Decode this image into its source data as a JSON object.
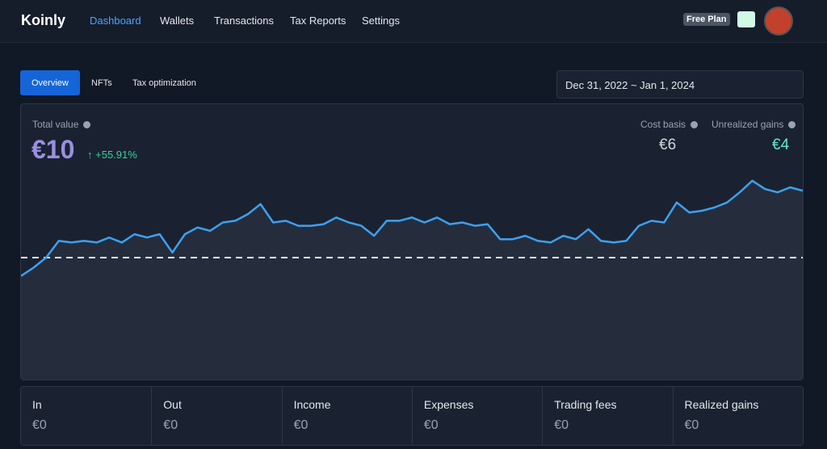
{
  "nav": {
    "brand": "Koinly",
    "links": [
      "Dashboard",
      "Wallets",
      "Transactions",
      "Tax Reports",
      "Settings"
    ],
    "plan": "Free Plan"
  },
  "tabs": [
    "Overview",
    "NFTs",
    "Tax optimization"
  ],
  "date_range": "Dec 31, 2022 ~ Jan 1, 2024",
  "summary": {
    "total_label": "Total value",
    "total": "€10",
    "change": "+55.91%",
    "cost_basis_label": "Cost basis",
    "cost_basis": "€6",
    "unrealized_label": "Unrealized gains",
    "unrealized": "€4"
  },
  "cards": [
    {
      "label": "In",
      "value": "€0"
    },
    {
      "label": "Out",
      "value": "€0"
    },
    {
      "label": "Income",
      "value": "€0"
    },
    {
      "label": "Expenses",
      "value": "€0"
    },
    {
      "label": "Trading fees",
      "value": "€0"
    },
    {
      "label": "Realized gains",
      "value": "€0"
    }
  ],
  "chart_data": {
    "type": "line",
    "color": "#3ea0f0",
    "reference_line": 6,
    "ylim": [
      -1.3,
      11.7
    ],
    "values": [
      4.9,
      5.4,
      6.0,
      7.0,
      6.9,
      7.0,
      6.9,
      7.2,
      6.9,
      7.4,
      7.2,
      7.4,
      6.3,
      7.4,
      7.8,
      7.6,
      8.1,
      8.2,
      8.6,
      9.2,
      8.1,
      8.2,
      7.9,
      7.9,
      8.0,
      8.4,
      8.1,
      7.9,
      7.3,
      8.2,
      8.2,
      8.4,
      8.1,
      8.4,
      8.0,
      8.1,
      7.9,
      8.0,
      7.1,
      7.1,
      7.3,
      7.0,
      6.9,
      7.3,
      7.1,
      7.7,
      7.0,
      6.9,
      7.0,
      7.9,
      8.2,
      8.1,
      9.3,
      8.7,
      8.8,
      9.0,
      9.3,
      9.9,
      10.6,
      10.1,
      9.9,
      10.2,
      10.0
    ]
  }
}
